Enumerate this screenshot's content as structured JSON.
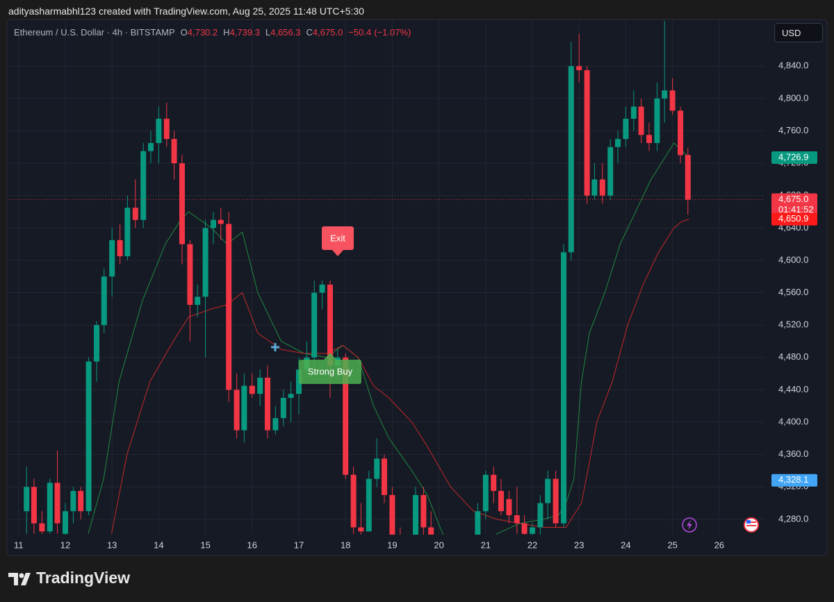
{
  "attribution": "adityasharmabhl123 created with TradingView.com, Aug 25, 2025 11:48 UTC+5:30",
  "branding": "TradingView",
  "currency": "USD",
  "legend": {
    "symbol": "Ethereum / U.S. Dollar · 4h · BITSTAMP",
    "fields": [
      {
        "key": "O",
        "value": {
          "value": 4730.2,
          "label": "4,730.2"
        }
      },
      {
        "key": "H",
        "value": {
          "value": 4739.3,
          "label": "4,739.3"
        }
      },
      {
        "key": "L",
        "value": {
          "value": 4656.3,
          "label": "4,656.3"
        }
      },
      {
        "key": "C",
        "value": {
          "value": 4675,
          "label": "4,675.0"
        }
      }
    ],
    "change": {
      "value": -50.4,
      "label": "−50.4"
    },
    "change_pct": {
      "value": -1.07,
      "label": "(−1.07%)"
    }
  },
  "signals": {
    "exit": "Exit",
    "buy": "Strong Buy"
  },
  "chart_data": {
    "type": "candlestick",
    "up_color": "#089981",
    "down_color": "#f23645",
    "grid": true,
    "x": [
      11.17,
      11.33,
      11.5,
      11.67,
      11.83,
      12,
      12.17,
      12.33,
      12.5,
      12.67,
      12.83,
      13,
      13.17,
      13.33,
      13.5,
      13.67,
      13.83,
      14,
      14.17,
      14.33,
      14.5,
      14.67,
      14.83,
      15,
      15.17,
      15.33,
      15.5,
      15.67,
      15.83,
      16,
      16.17,
      16.33,
      16.5,
      16.67,
      16.83,
      17,
      17.17,
      17.33,
      17.5,
      17.67,
      17.83,
      18,
      18.17,
      18.33,
      18.5,
      18.67,
      18.83,
      19,
      19.17,
      19.33,
      19.5,
      19.67,
      19.83,
      20,
      20.17,
      20.33,
      20.5,
      20.67,
      20.83,
      21,
      21.17,
      21.33,
      21.5,
      21.67,
      21.83,
      22,
      22.17,
      22.33,
      22.5,
      22.67,
      22.83,
      23,
      23.17,
      23.33,
      23.5,
      23.67,
      23.83,
      24,
      24.17,
      24.33,
      24.5,
      24.67,
      24.83,
      25,
      25.17,
      25.33
    ],
    "open": [
      4290,
      4320,
      4275,
      4265,
      4325,
      4262,
      4290,
      4315,
      4290,
      4475,
      4520,
      4580,
      4625,
      4605,
      4665,
      4650,
      4735,
      4745,
      4775,
      4750,
      4720,
      4620,
      4545,
      4555,
      4640,
      4650,
      4645,
      4440,
      4390,
      4445,
      4435,
      4455,
      4390,
      4405,
      4430,
      4435,
      4465,
      4480,
      4560,
      4570,
      4470,
      4480,
      4335,
      4270,
      4265,
      4330,
      4355,
      4310,
      4250,
      4210,
      4230,
      4310,
      4270,
      4220,
      4200,
      4215,
      4200,
      4210,
      4240,
      4290,
      4335,
      4315,
      4305,
      4285,
      4275,
      4262,
      4270,
      4300,
      4330,
      4275,
      4610,
      4840,
      4835,
      4680,
      4700,
      4680,
      4740,
      4750,
      4775,
      4790,
      4755,
      4745,
      4800,
      4810,
      4785,
      4730.2
    ],
    "high": [
      4345,
      4330,
      4290,
      4330,
      4365,
      4300,
      4320,
      4320,
      4480,
      4525,
      4590,
      4640,
      4645,
      4680,
      4700,
      4745,
      4760,
      4790,
      4795,
      4760,
      4730,
      4625,
      4570,
      4650,
      4660,
      4665,
      4660,
      4460,
      4460,
      4460,
      4465,
      4470,
      4420,
      4440,
      4450,
      4480,
      4500,
      4575,
      4575,
      4575,
      4490,
      4485,
      4345,
      4300,
      4340,
      4380,
      4360,
      4320,
      4270,
      4240,
      4320,
      4320,
      4290,
      4240,
      4230,
      4235,
      4220,
      4250,
      4300,
      4340,
      4345,
      4330,
      4315,
      4320,
      4285,
      4275,
      4310,
      4340,
      4340,
      4620,
      4870,
      4880,
      4840,
      4720,
      4720,
      4750,
      4760,
      4790,
      4810,
      4800,
      4770,
      4820,
      4915,
      4825,
      4790,
      4739.3
    ],
    "low": [
      4262,
      4262,
      4262,
      4262,
      4262,
      4255,
      4275,
      4280,
      4285,
      4450,
      4510,
      4555,
      4595,
      4600,
      4640,
      4640,
      4720,
      4720,
      4740,
      4700,
      4595,
      4500,
      4530,
      4480,
      4620,
      4625,
      4425,
      4380,
      4375,
      4430,
      4420,
      4380,
      4385,
      4395,
      4400,
      4410,
      4455,
      4470,
      4540,
      4430,
      4455,
      4330,
      4262,
      4255,
      4270,
      4320,
      4300,
      4240,
      4200,
      4190,
      4220,
      4260,
      4200,
      4180,
      4170,
      4190,
      4175,
      4200,
      4230,
      4280,
      4300,
      4285,
      4275,
      4262,
      4255,
      4250,
      4255,
      4280,
      4270,
      4270,
      4600,
      4820,
      4670,
      4675,
      4670,
      4675,
      4720,
      4740,
      4760,
      4745,
      4735,
      4735,
      4770,
      4780,
      4720,
      4656.3
    ],
    "close": [
      4320,
      4275,
      4265,
      4325,
      4275,
      4290,
      4315,
      4290,
      4475,
      4520,
      4580,
      4625,
      4605,
      4665,
      4650,
      4735,
      4745,
      4775,
      4750,
      4720,
      4620,
      4545,
      4555,
      4640,
      4650,
      4645,
      4440,
      4390,
      4445,
      4435,
      4455,
      4390,
      4405,
      4430,
      4435,
      4465,
      4480,
      4560,
      4570,
      4470,
      4480,
      4335,
      4270,
      4265,
      4330,
      4355,
      4310,
      4250,
      4210,
      4230,
      4310,
      4270,
      4220,
      4200,
      4215,
      4200,
      4210,
      4240,
      4290,
      4335,
      4315,
      4290,
      4285,
      4275,
      4262,
      4270,
      4300,
      4330,
      4275,
      4610,
      4840,
      4835,
      4680,
      4700,
      4680,
      4740,
      4750,
      4775,
      4790,
      4755,
      4745,
      4800,
      4810,
      4785,
      4730,
      4675
    ],
    "lines": [
      {
        "color": "#1f8b3f",
        "x": [
          12.49,
          12.82,
          13.15,
          13.65,
          14.14,
          14.47,
          14.64,
          15.13,
          15.46,
          15.79,
          16.12,
          16.62,
          17.11,
          17.61,
          17.94,
          18.27,
          18.6,
          18.93,
          19.42,
          19.75,
          20.08,
          20.41,
          20.91,
          21.24,
          21.73,
          22.23,
          22.56,
          22.72,
          22.89,
          23.05,
          23.22,
          23.55,
          23.88,
          24.21,
          24.54,
          24.87,
          25.03,
          25.36
        ],
        "values": [
          4262,
          4330,
          4450,
          4550,
          4620,
          4650,
          4660,
          4640,
          4620,
          4635,
          4560,
          4500,
          4485,
          4480,
          4495,
          4480,
          4420,
          4380,
          4340,
          4310,
          4262,
          4235,
          4230,
          4262,
          4275,
          4280,
          4285,
          4300,
          4330,
          4450,
          4510,
          4560,
          4620,
          4660,
          4700,
          4730,
          4745,
          4726.9
        ]
      },
      {
        "color": "#c62828",
        "x": [
          12.99,
          13.32,
          13.81,
          14.31,
          14.64,
          15.13,
          15.46,
          15.79,
          16.12,
          16.62,
          17.11,
          17.61,
          17.94,
          18.27,
          18.6,
          18.93,
          19.42,
          19.75,
          20.25,
          20.74,
          21.24,
          21.73,
          22.23,
          22.72,
          23.05,
          23.22,
          23.38,
          23.71,
          24.04,
          24.37,
          24.7,
          25.03,
          25.2,
          25.36
        ],
        "values": [
          4262,
          4360,
          4450,
          4500,
          4530,
          4540,
          4545,
          4560,
          4510,
          4490,
          4485,
          4485,
          4495,
          4480,
          4445,
          4430,
          4400,
          4370,
          4320,
          4290,
          4280,
          4275,
          4270,
          4270,
          4300,
          4350,
          4400,
          4450,
          4520,
          4570,
          4610,
          4640,
          4648,
          4650.9
        ]
      }
    ],
    "xlim": [
      10.78,
      26.97
    ],
    "xticks": [
      11,
      12,
      13,
      14,
      15,
      16,
      17,
      18,
      19,
      20,
      21,
      22,
      23,
      24,
      25,
      26
    ],
    "ylim": [
      4261,
      4896
    ],
    "yticks": [
      {
        "value": 4280,
        "label": "4,280.0"
      },
      {
        "value": 4320,
        "label": "4,320.0"
      },
      {
        "value": 4360,
        "label": "4,360.0"
      },
      {
        "value": 4400,
        "label": "4,400.0"
      },
      {
        "value": 4440,
        "label": "4,440.0"
      },
      {
        "value": 4480,
        "label": "4,480.0"
      },
      {
        "value": 4520,
        "label": "4,520.0"
      },
      {
        "value": 4560,
        "label": "4,560.0"
      },
      {
        "value": 4600,
        "label": "4,600.0"
      },
      {
        "value": 4640,
        "label": "4,640.0"
      },
      {
        "value": 4680,
        "label": "4,680.0"
      },
      {
        "value": 4720,
        "label": "4,720.0"
      },
      {
        "value": 4760,
        "label": "4,760.0"
      },
      {
        "value": 4800,
        "label": "4,800.0"
      },
      {
        "value": 4840,
        "label": "4,840.0"
      }
    ],
    "price_labels": [
      {
        "value": 4726.9,
        "label": "4,726.9",
        "color": "#089981"
      },
      {
        "value": 4675,
        "label": "4,675.0",
        "color": "#f23645",
        "countdown": "01:41:52"
      },
      {
        "value": 4650.9,
        "label": "4,650.9",
        "color": "#ff1a1a"
      },
      {
        "value": 4328.1,
        "label": "4,328.1",
        "color": "#42a5f5"
      }
    ]
  }
}
